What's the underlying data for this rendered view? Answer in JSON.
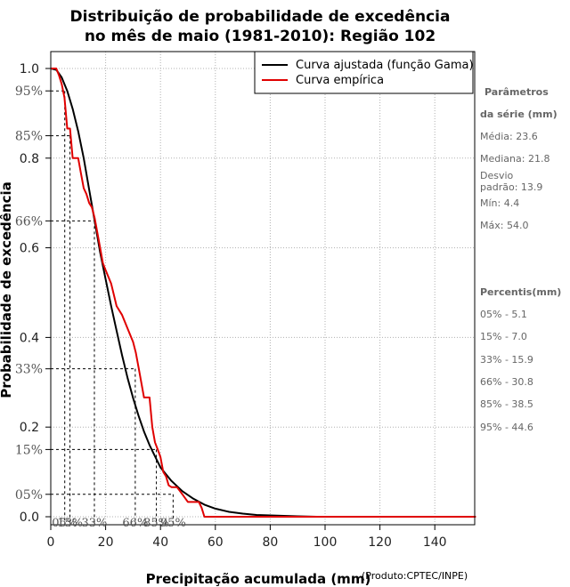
{
  "chart_data": {
    "type": "line",
    "title_line1": "Distribuição de probabilidade de excedência",
    "title_line2": "no mês de maio (1981-2010): Região 102",
    "xlabel": "Precipitação acumulada (mm)",
    "ylabel": "Probabilidade de excedência",
    "credit": "(Produto:CPTEC/INPE)",
    "xlim": [
      0,
      155
    ],
    "ylim": [
      -0.02,
      1.0
    ],
    "x_ticks": [
      "0",
      "20",
      "40",
      "60",
      "80",
      "100",
      "120",
      "140"
    ],
    "y_ticks": [
      "0.0",
      "0.2",
      "0.4",
      "0.6",
      "0.8",
      "1.0"
    ],
    "y_pct_ticks": [
      "05%",
      "15%",
      "33%",
      "66%",
      "85%",
      "95%"
    ],
    "grid": true,
    "legend_position": "top-right",
    "series": [
      {
        "name": "Curva ajustada (função Gama)",
        "color": "#000000",
        "x": [
          0,
          2,
          4,
          6,
          8,
          10,
          12,
          14,
          16,
          18,
          20,
          22,
          24,
          26,
          28,
          30,
          32,
          34,
          36,
          38,
          40,
          44,
          48,
          52,
          56,
          60,
          65,
          70,
          75,
          80,
          90,
          97
        ],
        "y": [
          1.0,
          0.997,
          0.98,
          0.95,
          0.91,
          0.86,
          0.8,
          0.73,
          0.66,
          0.59,
          0.53,
          0.47,
          0.415,
          0.36,
          0.31,
          0.265,
          0.225,
          0.19,
          0.16,
          0.135,
          0.11,
          0.08,
          0.057,
          0.04,
          0.027,
          0.018,
          0.011,
          0.007,
          0.004,
          0.003,
          0.001,
          0.0
        ]
      },
      {
        "name": "Curva empírica",
        "color": "#e00000",
        "x": [
          0,
          2,
          3,
          4,
          5,
          6,
          7,
          8,
          10,
          11,
          12,
          13,
          14,
          15,
          16,
          17,
          18,
          19,
          20,
          22,
          24,
          26,
          28,
          30,
          31,
          32,
          33,
          34,
          36,
          37,
          38,
          39,
          40,
          41,
          42,
          43,
          44,
          46,
          48,
          50,
          52,
          54,
          55,
          56,
          155
        ],
        "y": [
          1.0,
          1.0,
          0.985,
          0.965,
          0.935,
          0.866,
          0.866,
          0.8,
          0.8,
          0.766,
          0.733,
          0.72,
          0.7,
          0.69,
          0.666,
          0.633,
          0.6,
          0.566,
          0.55,
          0.52,
          0.47,
          0.45,
          0.42,
          0.39,
          0.366,
          0.333,
          0.3,
          0.266,
          0.266,
          0.2,
          0.166,
          0.15,
          0.133,
          0.1,
          0.09,
          0.07,
          0.066,
          0.066,
          0.05,
          0.033,
          0.033,
          0.033,
          0.02,
          0.0,
          0.0
        ]
      }
    ],
    "percentile_markers": [
      {
        "label": "05%",
        "x": 5.1,
        "p": 0.95
      },
      {
        "label": "15%",
        "x": 7.0,
        "p": 0.85
      },
      {
        "label": "33%",
        "x": 15.9,
        "p": 0.66
      },
      {
        "label": "66%",
        "x": 30.8,
        "p": 0.33
      },
      {
        "label": "85%",
        "x": 38.5,
        "p": 0.15
      },
      {
        "label": "95%",
        "x": 44.6,
        "p": 0.05
      }
    ]
  },
  "sidebar": {
    "params_heading_1": "Parâmetros",
    "params_heading_2": "da série (mm)",
    "media": "Média: 23.6",
    "mediana": "Mediana: 21.8",
    "desvio_1": "Desvio",
    "desvio_2": "padrão: 13.9",
    "min": "Mín: 4.4",
    "max": "Máx: 54.0",
    "percentis_heading": "Percentis(mm)",
    "p05": "05% - 5.1",
    "p15": "15% - 7.0",
    "p33": "33% - 15.9",
    "p66": "66% - 30.8",
    "p85": "85% - 38.5",
    "p95": "95% - 44.6"
  }
}
